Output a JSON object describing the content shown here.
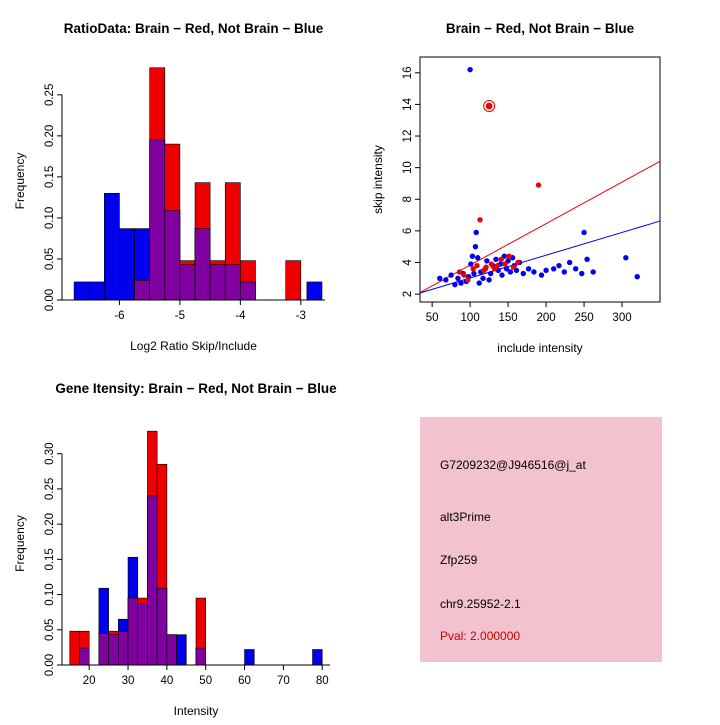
{
  "palette": {
    "red": "#EE0000",
    "blue": "#0000EE",
    "overlap": "#8000A0",
    "axis": "#000000"
  },
  "info_box": {
    "bg_color": "#F2C3CE",
    "pval_color": "#CC0000",
    "probe_id": "G7209232@J946516@j_at",
    "splice_type": "alt3Prime",
    "gene": "Zfp259",
    "location": "chr9.25952-2.1",
    "pval": "Pval: 2.000000"
  },
  "chart_data": [
    {
      "type": "histogram-overlay",
      "title": "RatioData: Brain − Red, Not Brain − Blue",
      "xlabel": "Log2 Ratio Skip/Include",
      "ylabel": "Frequency",
      "xlim": [
        -6.95,
        -2.6
      ],
      "ylim": [
        0,
        0.29
      ],
      "xticks": [
        -6,
        -5,
        -4,
        -3
      ],
      "xtick_labels": [
        "-6",
        "-5",
        "-4",
        "-3"
      ],
      "yticks": [
        0,
        0.05,
        0.1,
        0.15,
        0.2,
        0.25
      ],
      "ytick_labels": [
        "0.00",
        "0.05",
        "0.10",
        "0.15",
        "0.20",
        "0.25"
      ],
      "bin_width": 0.25,
      "legend_note": "red = Brain, blue = Not Brain, purple = overlap",
      "bins": [
        {
          "x": -6.75,
          "blue": 0.022,
          "red": 0
        },
        {
          "x": -6.5,
          "blue": 0.022,
          "red": 0
        },
        {
          "x": -6.25,
          "blue": 0.13,
          "red": 0
        },
        {
          "x": -6.0,
          "blue": 0.087,
          "red": 0
        },
        {
          "x": -5.75,
          "blue": 0.087,
          "red": 0.024
        },
        {
          "x": -5.5,
          "blue": 0.195,
          "red": 0.283
        },
        {
          "x": -5.25,
          "blue": 0.109,
          "red": 0.19
        },
        {
          "x": -5.0,
          "blue": 0.043,
          "red": 0.048
        },
        {
          "x": -4.75,
          "blue": 0.087,
          "red": 0.143
        },
        {
          "x": -4.5,
          "blue": 0.043,
          "red": 0.048
        },
        {
          "x": -4.25,
          "blue": 0.043,
          "red": 0.143
        },
        {
          "x": -4.0,
          "blue": 0.022,
          "red": 0.048
        },
        {
          "x": -3.25,
          "blue": 0,
          "red": 0.048
        },
        {
          "x": -2.9,
          "blue": 0.022,
          "red": 0
        }
      ]
    },
    {
      "type": "scatter",
      "title": "Brain − Red, Not Brain − Blue",
      "xlabel": "include intensity",
      "ylabel": "skip intensity",
      "xlim": [
        34,
        350
      ],
      "ylim": [
        1.5,
        17
      ],
      "xticks": [
        50,
        100,
        150,
        200,
        250,
        300
      ],
      "xtick_labels": [
        "50",
        "100",
        "150",
        "200",
        "250",
        "300"
      ],
      "yticks": [
        2,
        4,
        6,
        8,
        10,
        12,
        14,
        16
      ],
      "ytick_labels": [
        "2",
        "4",
        "6",
        "8",
        "10",
        "12",
        "14",
        "16"
      ],
      "lines": [
        {
          "color": "red",
          "x1": 34,
          "y1": 2.1,
          "x2": 350,
          "y2": 10.4
        },
        {
          "color": "blue",
          "x1": 34,
          "y1": 2.07,
          "x2": 350,
          "y2": 6.62
        }
      ],
      "highlight_point": [
        125,
        13.9
      ],
      "series": [
        {
          "name": "Not Brain",
          "color": "blue",
          "points": [
            [
              60,
              3.0
            ],
            [
              68,
              2.9
            ],
            [
              75,
              3.2
            ],
            [
              80,
              2.6
            ],
            [
              84,
              3.0
            ],
            [
              88,
              2.7
            ],
            [
              91,
              3.3
            ],
            [
              95,
              2.8
            ],
            [
              98,
              3.1
            ],
            [
              100,
              16.2
            ],
            [
              101,
              3.9
            ],
            [
              103,
              4.4
            ],
            [
              105,
              3.3
            ],
            [
              107,
              5.0
            ],
            [
              108,
              5.9
            ],
            [
              110,
              4.3
            ],
            [
              112,
              2.7
            ],
            [
              114,
              3.4
            ],
            [
              117,
              3.0
            ],
            [
              120,
              3.6
            ],
            [
              122,
              4.1
            ],
            [
              125,
              2.9
            ],
            [
              127,
              3.3
            ],
            [
              130,
              3.8
            ],
            [
              134,
              4.2
            ],
            [
              137,
              3.5
            ],
            [
              140,
              3.9
            ],
            [
              142,
              3.2
            ],
            [
              145,
              4.4
            ],
            [
              148,
              3.6
            ],
            [
              150,
              4.1
            ],
            [
              153,
              3.4
            ],
            [
              156,
              4.3
            ],
            [
              158,
              3.8
            ],
            [
              161,
              3.5
            ],
            [
              165,
              4.0
            ],
            [
              170,
              3.3
            ],
            [
              177,
              3.6
            ],
            [
              184,
              3.4
            ],
            [
              194,
              3.2
            ],
            [
              200,
              3.5
            ],
            [
              210,
              3.6
            ],
            [
              217,
              3.8
            ],
            [
              224,
              3.4
            ],
            [
              231,
              4.0
            ],
            [
              239,
              3.6
            ],
            [
              247,
              3.3
            ],
            [
              250,
              5.9
            ],
            [
              254,
              4.2
            ],
            [
              262,
              3.4
            ],
            [
              305,
              4.3
            ],
            [
              320,
              3.1
            ]
          ]
        },
        {
          "name": "Brain",
          "color": "red",
          "points": [
            [
              86,
              3.4
            ],
            [
              92,
              3.2
            ],
            [
              97,
              2.9
            ],
            [
              104,
              3.6
            ],
            [
              109,
              3.8
            ],
            [
              113,
              6.7
            ],
            [
              118,
              3.5
            ],
            [
              121,
              3.7
            ],
            [
              125,
              13.9
            ],
            [
              128,
              3.9
            ],
            [
              132,
              3.6
            ],
            [
              136,
              3.8
            ],
            [
              141,
              4.2
            ],
            [
              146,
              3.9
            ],
            [
              151,
              4.4
            ],
            [
              157,
              3.7
            ],
            [
              163,
              4.0
            ],
            [
              190,
              8.9
            ]
          ]
        }
      ]
    },
    {
      "type": "histogram-overlay",
      "title": "Gene Itensity: Brain − Red, Not Brain − Blue",
      "xlabel": "Intensity",
      "ylabel": "Frequency",
      "xlim": [
        13,
        82
      ],
      "ylim": [
        0,
        0.345
      ],
      "xticks": [
        20,
        30,
        40,
        50,
        60,
        70,
        80
      ],
      "xtick_labels": [
        "20",
        "30",
        "40",
        "50",
        "60",
        "70",
        "80"
      ],
      "yticks": [
        0,
        0.05,
        0.1,
        0.15,
        0.2,
        0.25,
        0.3
      ],
      "ytick_labels": [
        "0.00",
        "0.05",
        "0.10",
        "0.15",
        "0.20",
        "0.25",
        "0.30"
      ],
      "bin_width": 2.5,
      "legend_note": "red = Brain, blue = Not Brain, purple = overlap",
      "bins": [
        {
          "x": 15,
          "blue": 0,
          "red": 0.048
        },
        {
          "x": 17.5,
          "blue": 0.024,
          "red": 0.048
        },
        {
          "x": 22.5,
          "blue": 0.109,
          "red": 0.045
        },
        {
          "x": 25,
          "blue": 0.043,
          "red": 0.048
        },
        {
          "x": 27.5,
          "blue": 0.065,
          "red": 0.048
        },
        {
          "x": 30,
          "blue": 0.153,
          "red": 0.095
        },
        {
          "x": 32.5,
          "blue": 0.087,
          "red": 0.095
        },
        {
          "x": 35,
          "blue": 0.24,
          "red": 0.332
        },
        {
          "x": 37.5,
          "blue": 0.109,
          "red": 0.285
        },
        {
          "x": 40,
          "blue": 0.043,
          "red": 0.043
        },
        {
          "x": 42.5,
          "blue": 0.043,
          "red": 0
        },
        {
          "x": 47.5,
          "blue": 0.024,
          "red": 0.095
        },
        {
          "x": 60,
          "blue": 0.022,
          "red": 0
        },
        {
          "x": 77.5,
          "blue": 0.022,
          "red": 0
        }
      ]
    }
  ]
}
